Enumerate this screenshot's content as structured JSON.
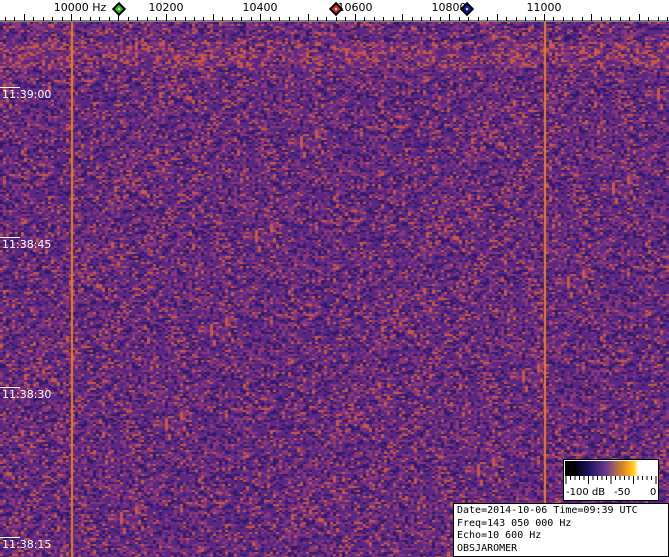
{
  "frequency_axis": {
    "unit_label": "Hz",
    "ticks": [
      {
        "hz": 10000,
        "label": "10000 Hz"
      },
      {
        "hz": 10200,
        "label": "10200"
      },
      {
        "hz": 10400,
        "label": "10400"
      },
      {
        "hz": 10600,
        "label": "10600"
      },
      {
        "hz": 10800,
        "label": "10800"
      },
      {
        "hz": 11000,
        "label": "11000"
      }
    ]
  },
  "markers": [
    {
      "color": "#22cc22",
      "hz": 10100
    },
    {
      "color": "#dd2222",
      "hz": 10560
    },
    {
      "color": "#1a1aaa",
      "hz": 10840
    }
  ],
  "time_axis": [
    "11:39:00",
    "11:38:45",
    "11:38:30",
    "11:38:15"
  ],
  "carrier_lines_hz": [
    10000,
    11000
  ],
  "colorbar": {
    "labels": [
      "-100 dB",
      "-50",
      "0"
    ]
  },
  "info": {
    "line1": "Date=2014-10-06 Time=09:39 UTC",
    "line2": "Freq=143 050 000 Hz",
    "line3": "Echo=10 600 Hz",
    "line4": "OBSJAROMER"
  }
}
